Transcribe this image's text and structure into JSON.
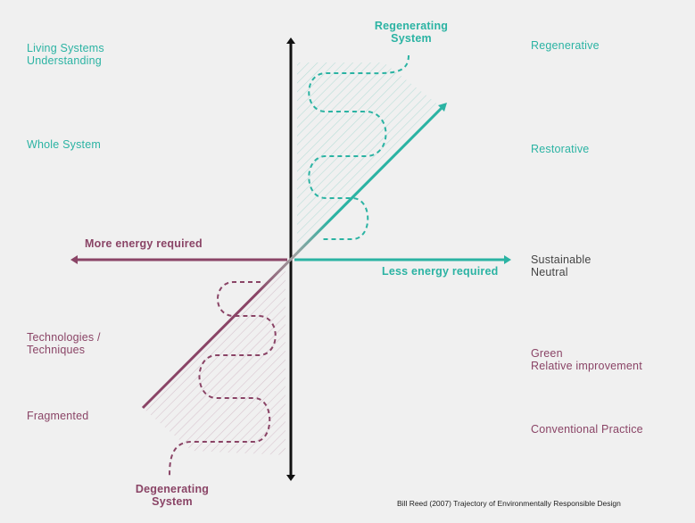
{
  "colors": {
    "regenerating": "#2bb3a3",
    "degenerating": "#8a4466",
    "axis": "#111111",
    "hatch_teal": "#b9ddd8",
    "hatch_maroon": "#d8c6cf",
    "neutral_text": "#444444"
  },
  "left_labels": {
    "living_systems": "Living Systems\nUnderstanding",
    "whole_system": "Whole System",
    "technologies": "Technologies /\nTechniques",
    "fragmented": "Fragmented"
  },
  "right_labels": {
    "regenerative": "Regenerative",
    "restorative": "Restorative",
    "sustainable": "Sustainable\nNeutral",
    "green": "Green\nRelative improvement",
    "conventional": "Conventional Practice"
  },
  "axis_labels": {
    "more_energy": "More energy required",
    "less_energy": "Less energy required"
  },
  "system_labels": {
    "regenerating": "Regenerating\nSystem",
    "degenerating": "Degenerating\nSystem"
  },
  "credit": "Bill Reed (2007) Trajectory of Environmentally Responsible Design"
}
